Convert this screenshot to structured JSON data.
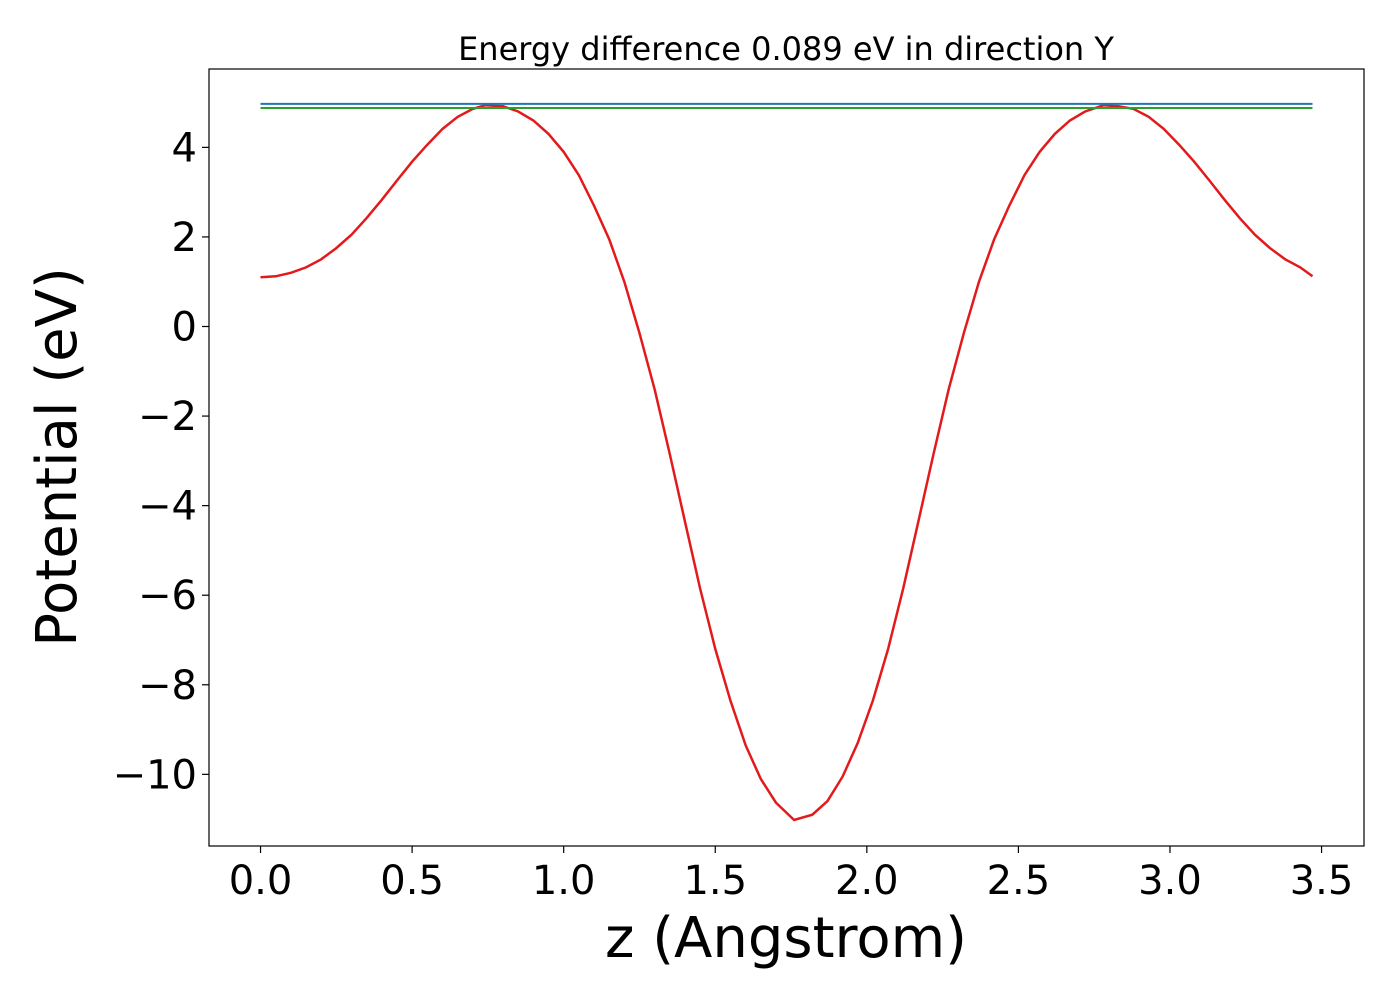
{
  "chart_data": {
    "type": "line",
    "title": "Energy difference 0.089 eV in direction Y",
    "xlabel": "z (Angstrom)",
    "ylabel": "Potential (eV)",
    "xlim": [
      -0.17,
      3.64
    ],
    "ylim": [
      -11.6,
      5.75
    ],
    "x_ticks": [
      0.0,
      0.5,
      1.0,
      1.5,
      2.0,
      2.5,
      3.0,
      3.5
    ],
    "x_tick_labels": [
      "0.0",
      "0.5",
      "1.0",
      "1.5",
      "2.0",
      "2.5",
      "3.0",
      "3.5"
    ],
    "y_ticks": [
      4,
      2,
      0,
      -2,
      -4,
      -6,
      -8,
      -10
    ],
    "y_tick_labels": [
      "4",
      "2",
      "0",
      "−2",
      "−4",
      "−6",
      "−8",
      "−10"
    ],
    "grid": false,
    "series": [
      {
        "color": "#e31a1c",
        "points": [
          [
            0.0,
            1.1
          ],
          [
            0.05,
            1.12
          ],
          [
            0.1,
            1.2
          ],
          [
            0.15,
            1.32
          ],
          [
            0.2,
            1.5
          ],
          [
            0.25,
            1.75
          ],
          [
            0.3,
            2.05
          ],
          [
            0.35,
            2.42
          ],
          [
            0.4,
            2.83
          ],
          [
            0.45,
            3.26
          ],
          [
            0.5,
            3.68
          ],
          [
            0.55,
            4.06
          ],
          [
            0.6,
            4.41
          ],
          [
            0.65,
            4.68
          ],
          [
            0.7,
            4.86
          ],
          [
            0.74,
            4.94
          ],
          [
            0.8,
            4.92
          ],
          [
            0.85,
            4.8
          ],
          [
            0.9,
            4.6
          ],
          [
            0.95,
            4.3
          ],
          [
            1.0,
            3.9
          ],
          [
            1.05,
            3.38
          ],
          [
            1.1,
            2.7
          ],
          [
            1.15,
            1.95
          ],
          [
            1.2,
            1.0
          ],
          [
            1.25,
            -0.15
          ],
          [
            1.3,
            -1.4
          ],
          [
            1.35,
            -2.85
          ],
          [
            1.4,
            -4.35
          ],
          [
            1.45,
            -5.85
          ],
          [
            1.5,
            -7.2
          ],
          [
            1.55,
            -8.35
          ],
          [
            1.6,
            -9.35
          ],
          [
            1.65,
            -10.1
          ],
          [
            1.7,
            -10.63
          ],
          [
            1.76,
            -11.02
          ],
          [
            1.82,
            -10.9
          ],
          [
            1.87,
            -10.6
          ],
          [
            1.92,
            -10.05
          ],
          [
            1.97,
            -9.3
          ],
          [
            2.02,
            -8.35
          ],
          [
            2.07,
            -7.2
          ],
          [
            2.12,
            -5.85
          ],
          [
            2.17,
            -4.35
          ],
          [
            2.22,
            -2.85
          ],
          [
            2.27,
            -1.4
          ],
          [
            2.32,
            -0.15
          ],
          [
            2.37,
            1.0
          ],
          [
            2.42,
            1.95
          ],
          [
            2.47,
            2.7
          ],
          [
            2.52,
            3.38
          ],
          [
            2.57,
            3.9
          ],
          [
            2.62,
            4.3
          ],
          [
            2.67,
            4.6
          ],
          [
            2.72,
            4.8
          ],
          [
            2.78,
            4.94
          ],
          [
            2.83,
            4.92
          ],
          [
            2.88,
            4.86
          ],
          [
            2.93,
            4.68
          ],
          [
            2.98,
            4.41
          ],
          [
            3.03,
            4.06
          ],
          [
            3.08,
            3.68
          ],
          [
            3.13,
            3.26
          ],
          [
            3.18,
            2.83
          ],
          [
            3.23,
            2.42
          ],
          [
            3.28,
            2.05
          ],
          [
            3.33,
            1.75
          ],
          [
            3.38,
            1.5
          ],
          [
            3.43,
            1.32
          ],
          [
            3.47,
            1.12
          ]
        ]
      },
      {
        "color": "#1f77b4",
        "points": [
          [
            0.0,
            4.97
          ],
          [
            3.47,
            4.97
          ]
        ]
      },
      {
        "color": "#2ca02c",
        "points": [
          [
            0.0,
            4.88
          ],
          [
            3.47,
            4.88
          ]
        ]
      }
    ]
  }
}
